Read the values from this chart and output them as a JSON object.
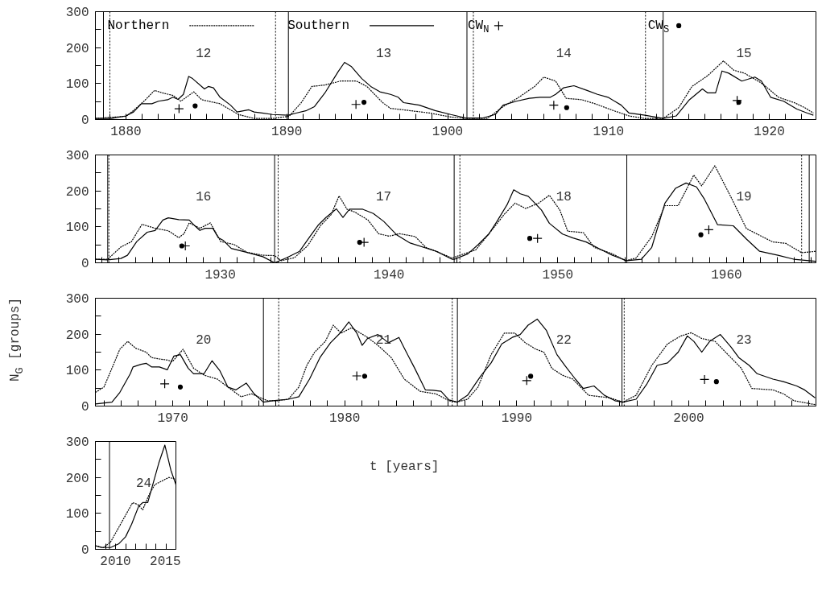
{
  "chart_data": [
    {
      "type": "line",
      "xlim": [
        1878.1,
        1922.9
      ],
      "ylim": [
        0,
        300
      ],
      "legend": "top",
      "xticks": [
        {
          "value": 1879,
          "label": null
        },
        1880,
        {
          "value": 1881,
          "label": null
        },
        {
          "value": 1882,
          "label": null
        },
        {
          "value": 1883,
          "label": null
        },
        {
          "value": 1884,
          "label": null
        },
        {
          "value": 1885,
          "label": null
        },
        {
          "value": 1886,
          "label": null
        },
        {
          "value": 1887,
          "label": null
        },
        {
          "value": 1888,
          "label": null
        },
        {
          "value": 1889,
          "label": null
        },
        1890,
        {
          "value": 1891,
          "label": null
        },
        {
          "value": 1892,
          "label": null
        },
        {
          "value": 1893,
          "label": null
        },
        {
          "value": 1894,
          "label": null
        },
        {
          "value": 1895,
          "label": null
        },
        {
          "value": 1896,
          "label": null
        },
        {
          "value": 1897,
          "label": null
        },
        {
          "value": 1898,
          "label": null
        },
        {
          "value": 1899,
          "label": null
        },
        1900,
        {
          "value": 1901,
          "label": null
        },
        {
          "value": 1902,
          "label": null
        },
        {
          "value": 1903,
          "label": null
        },
        {
          "value": 1904,
          "label": null
        },
        {
          "value": 1905,
          "label": null
        },
        {
          "value": 1906,
          "label": null
        },
        {
          "value": 1907,
          "label": null
        },
        {
          "value": 1908,
          "label": null
        },
        {
          "value": 1909,
          "label": null
        },
        1910,
        {
          "value": 1911,
          "label": null
        },
        {
          "value": 1912,
          "label": null
        },
        {
          "value": 1913,
          "label": null
        },
        {
          "value": 1914,
          "label": null
        },
        {
          "value": 1915,
          "label": null
        },
        {
          "value": 1916,
          "label": null
        },
        {
          "value": 1917,
          "label": null
        },
        {
          "value": 1918,
          "label": null
        },
        {
          "value": 1919,
          "label": null
        },
        1920,
        {
          "value": 1921,
          "label": null
        },
        {
          "value": 1922,
          "label": null
        }
      ],
      "yticks": [
        0,
        {
          "value": 50,
          "label": null
        },
        100,
        {
          "value": 150,
          "label": null
        },
        200,
        {
          "value": 250,
          "label": null
        },
        300
      ],
      "series": [
        {
          "name": "Northern",
          "line_style": "dashed",
          "color": "#000000",
          "x": [
            1878.1,
            1880.0,
            1880.47,
            1881.12,
            1881.78,
            1882.27,
            1882.92,
            1883.41,
            1884.22,
            1884.71,
            1885.85,
            1886.99,
            1887.97,
            1889.11,
            1890.14,
            1890.9,
            1891.56,
            1892.37,
            1893.35,
            1894.33,
            1894.98,
            1895.96,
            1896.45,
            1897.26,
            1898.89,
            1900.19,
            1901.17,
            1902.48,
            1903.45,
            1904.43,
            1905.41,
            1905.98,
            1906.71,
            1907.37,
            1908.34,
            1909.16,
            1910.3,
            1911.28,
            1912.26,
            1913.4,
            1914.37,
            1915.19,
            1916.17,
            1917.15,
            1917.8,
            1918.45,
            1919.59,
            1920.57,
            1921.55,
            1922.2,
            1922.74
          ],
          "values": [
            3,
            9,
            25,
            51,
            81,
            74,
            67,
            51,
            77,
            55,
            44,
            14,
            3,
            3,
            9,
            47,
            92,
            96,
            107,
            107,
            92,
            47,
            31,
            27,
            18,
            7,
            3,
            3,
            36,
            62,
            92,
            118,
            107,
            59,
            55,
            44,
            25,
            10,
            3,
            3,
            33,
            92,
            122,
            163,
            137,
            129,
            99,
            62,
            47,
            33,
            18
          ]
        },
        {
          "name": "Southern",
          "line_style": "solid",
          "color": "#000000",
          "x": [
            1878.1,
            1879.09,
            1880.0,
            1880.47,
            1880.96,
            1881.61,
            1882.02,
            1882.59,
            1882.92,
            1883.24,
            1883.57,
            1883.9,
            1884.14,
            1884.88,
            1885.12,
            1885.44,
            1885.85,
            1886.5,
            1886.91,
            1887.64,
            1887.97,
            1888.46,
            1889.11,
            1890.09,
            1890.58,
            1891.23,
            1891.72,
            1892.37,
            1893.19,
            1893.59,
            1894.0,
            1894.66,
            1895.22,
            1895.79,
            1896.45,
            1896.93,
            1897.26,
            1898.24,
            1899.22,
            1900.19,
            1901.17,
            1902.15,
            1902.96,
            1903.45,
            1904.27,
            1905.08,
            1905.74,
            1906.39,
            1906.71,
            1907.2,
            1907.85,
            1908.67,
            1909.32,
            1909.97,
            1910.79,
            1911.28,
            1912.26,
            1913.4,
            1914.21,
            1915.03,
            1915.84,
            1916.17,
            1916.66,
            1917.06,
            1917.47,
            1918.29,
            1919.1,
            1919.51,
            1920.08,
            1920.89,
            1921.71,
            1922.36,
            1922.74
          ],
          "values": [
            3,
            3,
            10,
            21,
            44,
            44,
            51,
            55,
            62,
            56,
            70,
            120,
            114,
            85,
            92,
            88,
            62,
            40,
            21,
            27,
            21,
            18,
            14,
            12,
            18,
            25,
            36,
            74,
            133,
            159,
            148,
            114,
            92,
            77,
            70,
            62,
            47,
            40,
            25,
            14,
            4,
            4,
            14,
            40,
            51,
            59,
            62,
            62,
            70,
            88,
            94,
            81,
            70,
            62,
            40,
            18,
            12,
            3,
            10,
            55,
            85,
            74,
            74,
            135,
            129,
            107,
            118,
            107,
            62,
            51,
            29,
            18,
            12
          ]
        },
        {
          "name": "CW$_{N}$",
          "type": "scatter",
          "marker": "cross",
          "color": "#000000",
          "x": [
            1883.3,
            1894.3,
            1906.6,
            1918.0
          ],
          "values": [
            30,
            42,
            40,
            53
          ]
        },
        {
          "name": "CW$_{S}$",
          "type": "scatter",
          "marker": "circle",
          "color": "#000000",
          "x": [
            1884.3,
            1894.8,
            1907.4,
            1918.1
          ],
          "values": [
            38,
            48,
            33,
            48
          ]
        }
      ],
      "ref_lines": [
        {
          "axis": "x",
          "value": 1878.6,
          "line_style": "solid"
        },
        {
          "axis": "x",
          "value": 1879.0,
          "line_style": "dotted"
        },
        {
          "axis": "x",
          "value": 1889.3,
          "line_style": "dotted"
        },
        {
          "axis": "x",
          "value": 1890.1,
          "line_style": "solid"
        },
        {
          "axis": "x",
          "value": 1901.2,
          "line_style": "solid"
        },
        {
          "axis": "x",
          "value": 1901.6,
          "line_style": "dotted"
        },
        {
          "axis": "x",
          "value": 1912.3,
          "line_style": "dotted"
        },
        {
          "axis": "x",
          "value": 1913.4,
          "line_style": "solid"
        }
      ],
      "annotations": [
        "12",
        "13",
        "14",
        "15"
      ]
    },
    {
      "type": "line",
      "xlim": [
        1922.6,
        1965.3
      ],
      "ylim": [
        0,
        300
      ],
      "xticks": [
        {
          "value": 1923,
          "label": null
        },
        {
          "value": 1924,
          "label": null
        },
        {
          "value": 1925,
          "label": null
        },
        {
          "value": 1926,
          "label": null
        },
        {
          "value": 1927,
          "label": null
        },
        {
          "value": 1928,
          "label": null
        },
        {
          "value": 1929,
          "label": null
        },
        1930,
        {
          "value": 1931,
          "label": null
        },
        {
          "value": 1932,
          "label": null
        },
        {
          "value": 1933,
          "label": null
        },
        {
          "value": 1934,
          "label": null
        },
        {
          "value": 1935,
          "label": null
        },
        {
          "value": 1936,
          "label": null
        },
        {
          "value": 1937,
          "label": null
        },
        {
          "value": 1938,
          "label": null
        },
        {
          "value": 1939,
          "label": null
        },
        1940,
        {
          "value": 1941,
          "label": null
        },
        {
          "value": 1942,
          "label": null
        },
        {
          "value": 1943,
          "label": null
        },
        {
          "value": 1944,
          "label": null
        },
        {
          "value": 1945,
          "label": null
        },
        {
          "value": 1946,
          "label": null
        },
        {
          "value": 1947,
          "label": null
        },
        {
          "value": 1948,
          "label": null
        },
        {
          "value": 1949,
          "label": null
        },
        1950,
        {
          "value": 1951,
          "label": null
        },
        {
          "value": 1952,
          "label": null
        },
        {
          "value": 1953,
          "label": null
        },
        {
          "value": 1954,
          "label": null
        },
        {
          "value": 1955,
          "label": null
        },
        {
          "value": 1956,
          "label": null
        },
        {
          "value": 1957,
          "label": null
        },
        {
          "value": 1958,
          "label": null
        },
        {
          "value": 1959,
          "label": null
        },
        1960,
        {
          "value": 1961,
          "label": null
        },
        {
          "value": 1962,
          "label": null
        },
        {
          "value": 1963,
          "label": null
        },
        {
          "value": 1964,
          "label": null
        },
        {
          "value": 1965,
          "label": null
        }
      ],
      "yticks": [
        0,
        {
          "value": 50,
          "label": null
        },
        100,
        {
          "value": 150,
          "label": null
        },
        200,
        {
          "value": 250,
          "label": null
        },
        300
      ],
      "series": [
        {
          "line_style": "dashed",
          "color": "#000000",
          "x": [
            1922.63,
            1923.33,
            1924.11,
            1924.74,
            1925.36,
            1926.14,
            1926.92,
            1927.54,
            1927.85,
            1928.16,
            1928.79,
            1929.41,
            1930.03,
            1930.81,
            1931.59,
            1932.52,
            1933.22,
            1933.61,
            1934.39,
            1935.17,
            1935.95,
            1936.57,
            1937.04,
            1937.51,
            1937.98,
            1938.75,
            1939.38,
            1940.0,
            1940.62,
            1941.55,
            1942.18,
            1942.8,
            1943.73,
            1944.2,
            1945.14,
            1945.91,
            1946.85,
            1947.47,
            1948.1,
            1948.87,
            1949.5,
            1950.12,
            1950.59,
            1951.52,
            1952.15,
            1953.24,
            1954.01,
            1954.64,
            1955.57,
            1956.35,
            1957.13,
            1958.06,
            1958.53,
            1959.31,
            1960.24,
            1961.18,
            1962.74,
            1963.52,
            1964.45,
            1965.28
          ],
          "values": [
            10,
            10,
            44,
            59,
            107,
            96,
            89,
            70,
            81,
            111,
            96,
            111,
            59,
            51,
            29,
            21,
            20,
            6,
            14,
            47,
            104,
            134,
            186,
            149,
            141,
            119,
            81,
            74,
            81,
            73,
            43,
            32,
            13,
            21,
            36,
            80,
            136,
            166,
            151,
            166,
            188,
            147,
            88,
            84,
            43,
            25,
            6,
            13,
            73,
            159,
            159,
            244,
            214,
            270,
            185,
            95,
            58,
            54,
            28,
            32
          ]
        },
        {
          "line_style": "solid",
          "color": "#000000",
          "x": [
            1922.63,
            1923.33,
            1924.11,
            1924.5,
            1925.05,
            1925.67,
            1926.14,
            1926.6,
            1926.92,
            1927.54,
            1928.16,
            1928.47,
            1928.79,
            1929.1,
            1929.56,
            1929.88,
            1930.19,
            1930.65,
            1931.59,
            1932.52,
            1933.22,
            1933.93,
            1934.7,
            1935.33,
            1935.79,
            1936.26,
            1936.88,
            1937.27,
            1937.66,
            1938.44,
            1939.07,
            1939.69,
            1940.47,
            1941.25,
            1942.8,
            1943.73,
            1943.89,
            1944.67,
            1945.29,
            1945.91,
            1946.38,
            1947.0,
            1947.39,
            1947.78,
            1948.25,
            1948.56,
            1949.03,
            1949.5,
            1950.28,
            1950.9,
            1951.68,
            1952.46,
            1953.24,
            1954.09,
            1954.95,
            1955.57,
            1956.35,
            1956.97,
            1957.6,
            1958.22,
            1958.69,
            1959.47,
            1960.4,
            1961.18,
            1961.96,
            1963.05,
            1963.98,
            1965.28
          ],
          "values": [
            10,
            8,
            12,
            21,
            59,
            85,
            90,
            119,
            125,
            120,
            119,
            104,
            90,
            96,
            96,
            70,
            62,
            40,
            29,
            17,
            0,
            14,
            32,
            74,
            104,
            126,
            150,
            126,
            149,
            149,
            137,
            115,
            77,
            55,
            32,
            10,
            10,
            25,
            51,
            80,
            114,
            162,
            203,
            192,
            185,
            170,
            147,
            110,
            80,
            69,
            58,
            39,
            21,
            6,
            10,
            43,
            166,
            207,
            222,
            211,
            177,
            106,
            103,
            66,
            32,
            21,
            10,
            4
          ]
        },
        {
          "type": "scatter",
          "marker": "cross",
          "color": "#000000",
          "x": [
            1927.93,
            1938.52,
            1948.8,
            1958.95
          ],
          "values": [
            47,
            57,
            68,
            92
          ]
        },
        {
          "type": "scatter",
          "marker": "circle",
          "color": "#000000",
          "x": [
            1927.72,
            1938.26,
            1948.34,
            1958.48
          ],
          "values": [
            47,
            57,
            68,
            78
          ]
        }
      ],
      "ref_lines": [
        {
          "axis": "x",
          "value": 1923.33,
          "line_style": "solid"
        },
        {
          "axis": "x",
          "value": 1923.4,
          "line_style": "dotted"
        },
        {
          "axis": "x",
          "value": 1933.22,
          "line_style": "solid"
        },
        {
          "axis": "x",
          "value": 1933.43,
          "line_style": "dotted"
        },
        {
          "axis": "x",
          "value": 1943.86,
          "line_style": "solid"
        },
        {
          "axis": "x",
          "value": 1944.2,
          "line_style": "dotted"
        },
        {
          "axis": "x",
          "value": 1954.09,
          "line_style": "solid"
        },
        {
          "axis": "x",
          "value": 1964.45,
          "line_style": "dotted"
        },
        {
          "axis": "x",
          "value": 1964.9,
          "line_style": "solid"
        }
      ],
      "annotations": [
        "16",
        "17",
        "18",
        "19"
      ]
    },
    {
      "type": "line",
      "xlim": [
        1965.5,
        2007.4
      ],
      "ylim": [
        0,
        300
      ],
      "ylabel": "N$_{G}$ [groups]",
      "xlabel": "t [years]",
      "xticks": [
        {
          "value": 1966,
          "label": null
        },
        {
          "value": 1967,
          "label": null
        },
        {
          "value": 1968,
          "label": null
        },
        {
          "value": 1969,
          "label": null
        },
        1970,
        {
          "value": 1971,
          "label": null
        },
        {
          "value": 1972,
          "label": null
        },
        {
          "value": 1973,
          "label": null
        },
        {
          "value": 1974,
          "label": null
        },
        {
          "value": 1975,
          "label": null
        },
        {
          "value": 1976,
          "label": null
        },
        {
          "value": 1977,
          "label": null
        },
        {
          "value": 1978,
          "label": null
        },
        {
          "value": 1979,
          "label": null
        },
        1980,
        {
          "value": 1981,
          "label": null
        },
        {
          "value": 1982,
          "label": null
        },
        {
          "value": 1983,
          "label": null
        },
        {
          "value": 1984,
          "label": null
        },
        {
          "value": 1985,
          "label": null
        },
        {
          "value": 1986,
          "label": null
        },
        {
          "value": 1987,
          "label": null
        },
        {
          "value": 1988,
          "label": null
        },
        {
          "value": 1989,
          "label": null
        },
        1990,
        {
          "value": 1991,
          "label": null
        },
        {
          "value": 1992,
          "label": null
        },
        {
          "value": 1993,
          "label": null
        },
        {
          "value": 1994,
          "label": null
        },
        {
          "value": 1995,
          "label": null
        },
        {
          "value": 1996,
          "label": null
        },
        {
          "value": 1997,
          "label": null
        },
        {
          "value": 1998,
          "label": null
        },
        {
          "value": 1999,
          "label": null
        },
        2000,
        {
          "value": 2001,
          "label": null
        },
        {
          "value": 2002,
          "label": null
        },
        {
          "value": 2003,
          "label": null
        },
        {
          "value": 2004,
          "label": null
        },
        {
          "value": 2005,
          "label": null
        },
        {
          "value": 2006,
          "label": null
        },
        {
          "value": 2007,
          "label": null
        }
      ],
      "yticks": [
        0,
        {
          "value": 50,
          "label": null
        },
        100,
        {
          "value": 150,
          "label": null
        },
        200,
        {
          "value": 250,
          "label": null
        },
        300
      ],
      "series": [
        {
          "line_style": "dashed",
          "color": "#000000",
          "x": [
            1965.5,
            1966.0,
            1966.46,
            1966.92,
            1967.38,
            1967.84,
            1968.45,
            1968.76,
            1969.22,
            1969.68,
            1969.98,
            1970.6,
            1971.21,
            1971.82,
            1972.59,
            1973.2,
            1973.97,
            1974.58,
            1975.5,
            1976.11,
            1976.72,
            1977.33,
            1977.79,
            1978.25,
            1978.87,
            1979.33,
            1979.79,
            1980.4,
            1981.32,
            1981.93,
            1982.7,
            1983.46,
            1984.38,
            1985.3,
            1986.06,
            1986.52,
            1987.14,
            1987.75,
            1988.51,
            1989.28,
            1989.89,
            1990.5,
            1991.12,
            1991.58,
            1992.04,
            1992.65,
            1993.26,
            1994.18,
            1995.4,
            1996.17,
            1996.94,
            1997.85,
            1998.77,
            1999.54,
            2000.15,
            2000.76,
            2001.53,
            2002.45,
            2003.06,
            2003.67,
            2004.9,
            2005.51,
            2006.12,
            2007.35
          ],
          "values": [
            38,
            53,
            105,
            158,
            180,
            161,
            150,
            135,
            131,
            128,
            124,
            158,
            105,
            86,
            75,
            53,
            26,
            34,
            15,
            15,
            19,
            53,
            113,
            150,
            180,
            225,
            203,
            218,
            191,
            169,
            135,
            75,
            41,
            34,
            15,
            11,
            19,
            53,
            143,
            203,
            203,
            176,
            158,
            150,
            105,
            86,
            75,
            30,
            23,
            11,
            30,
            113,
            173,
            195,
            204,
            188,
            180,
            135,
            105,
            49,
            45,
            34,
            15,
            4
          ]
        },
        {
          "line_style": "solid",
          "color": "#000000",
          "x": [
            1965.5,
            1966.46,
            1966.92,
            1967.53,
            1967.69,
            1968.15,
            1968.45,
            1968.76,
            1969.22,
            1969.68,
            1970.06,
            1970.44,
            1970.9,
            1971.21,
            1971.82,
            1972.28,
            1972.74,
            1973.2,
            1973.66,
            1974.27,
            1974.73,
            1975.27,
            1975.8,
            1976.72,
            1977.33,
            1977.95,
            1978.56,
            1979.17,
            1979.79,
            1980.24,
            1980.7,
            1981.01,
            1981.32,
            1981.93,
            1982.54,
            1983.15,
            1983.46,
            1984.07,
            1984.69,
            1985.14,
            1985.6,
            1986.06,
            1986.55,
            1987.14,
            1987.9,
            1988.51,
            1989.13,
            1989.74,
            1990.2,
            1990.66,
            1991.19,
            1991.73,
            1992.34,
            1992.8,
            1993.41,
            1993.87,
            1994.49,
            1995.1,
            1995.71,
            1996.17,
            1996.94,
            1997.55,
            1998.16,
            1998.77,
            1999.39,
            1999.92,
            2000.3,
            2000.76,
            2001.22,
            2001.84,
            2002.45,
            2002.91,
            2003.52,
            2003.98,
            2004.9,
            2005.51,
            2006.28,
            2006.74,
            2007.35
          ],
          "values": [
            6,
            11,
            38,
            90,
            109,
            116,
            119,
            109,
            109,
            101,
            139,
            143,
            105,
            90,
            90,
            126,
            98,
            53,
            45,
            64,
            34,
            11,
            15,
            19,
            26,
            75,
            135,
            176,
            206,
            234,
            203,
            169,
            188,
            199,
            176,
            191,
            161,
            105,
            45,
            44,
            41,
            17,
            11,
            30,
            83,
            120,
            173,
            191,
            199,
            225,
            242,
            210,
            143,
            113,
            75,
            49,
            56,
            30,
            15,
            11,
            19,
            60,
            113,
            120,
            150,
            195,
            180,
            150,
            180,
            199,
            165,
            135,
            113,
            90,
            75,
            68,
            56,
            45,
            23
          ]
        },
        {
          "type": "scatter",
          "marker": "cross",
          "color": "#000000",
          "x": [
            1969.53,
            1980.7,
            1990.58,
            2000.92
          ],
          "values": [
            62,
            84,
            71,
            74
          ]
        },
        {
          "type": "scatter",
          "marker": "circle",
          "color": "#000000",
          "x": [
            1970.44,
            1981.16,
            1990.81,
            2001.61
          ],
          "values": [
            53,
            83,
            83,
            68
          ]
        }
      ],
      "ref_lines": [
        {
          "axis": "x",
          "value": 1975.27,
          "line_style": "solid"
        },
        {
          "axis": "x",
          "value": 1976.16,
          "line_style": "dotted"
        },
        {
          "axis": "x",
          "value": 1986.25,
          "line_style": "dotted"
        },
        {
          "axis": "x",
          "value": 1986.55,
          "line_style": "solid"
        },
        {
          "axis": "x",
          "value": 1996.12,
          "line_style": "solid"
        },
        {
          "axis": "x",
          "value": 1996.25,
          "line_style": "dotted"
        }
      ],
      "annotations": [
        "20",
        "21",
        "22",
        "23"
      ]
    },
    {
      "type": "line",
      "xlim": [
        2008,
        2016
      ],
      "ylim": [
        0,
        300
      ],
      "xticks": [
        {
          "value": 2009,
          "label": null
        },
        2010,
        {
          "value": 2011,
          "label": null
        },
        {
          "value": 2012,
          "label": null
        },
        {
          "value": 2013,
          "label": null
        },
        {
          "value": 2014,
          "label": null
        },
        2015
      ],
      "yticks": [
        0,
        {
          "value": 50,
          "label": null
        },
        100,
        {
          "value": 150,
          "label": null
        },
        200,
        {
          "value": 250,
          "label": null
        },
        300
      ],
      "series": [
        {
          "line_style": "dashed",
          "color": "#000000",
          "x": [
            2008.0,
            2008.8,
            2009.5,
            2010.3,
            2011.1,
            2011.7,
            2012.2,
            2012.7,
            2013.3,
            2013.9,
            2014.6,
            2015.3,
            2016.0
          ],
          "values": [
            10,
            5,
            20,
            60,
            100,
            130,
            125,
            110,
            150,
            180,
            190,
            200,
            195
          ]
        },
        {
          "line_style": "solid",
          "color": "#000000",
          "x": [
            2008.0,
            2008.6,
            2009.5,
            2010.3,
            2011.0,
            2011.6,
            2012.3,
            2012.7,
            2013.2,
            2013.8,
            2014.3,
            2014.9,
            2015.5,
            2016.0
          ],
          "values": [
            10,
            5,
            5,
            15,
            35,
            70,
            120,
            130,
            130,
            190,
            240,
            290,
            220,
            180
          ]
        }
      ],
      "ref_lines": [
        {
          "axis": "x",
          "value": 2009.4,
          "line_style": "solid"
        }
      ],
      "annotations": [
        "24"
      ]
    }
  ]
}
